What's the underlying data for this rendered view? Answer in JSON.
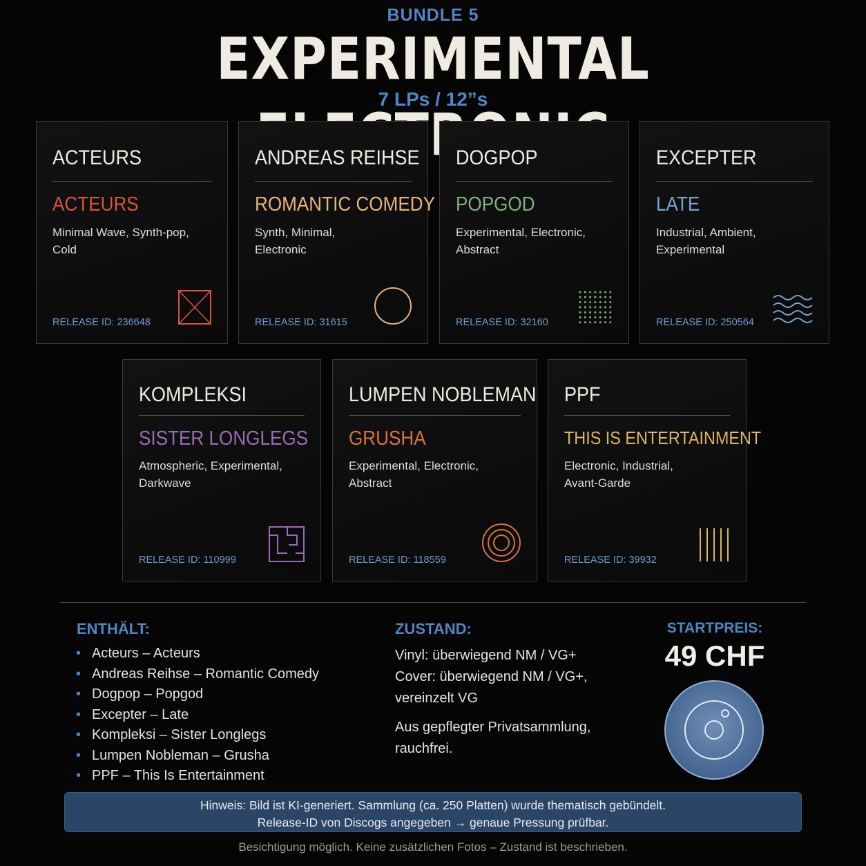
{
  "header": {
    "bundle": "BUNDLE 5",
    "title": "EXPERIMENTAL ELECTRONIC",
    "subtitle": "7 LPs / 12”s"
  },
  "release_id_label": "RELEASE ID:",
  "records": [
    {
      "artist": "ACTEURS",
      "album": "ACTEURS",
      "genres_line1": "Minimal Wave, Synth-pop,",
      "genres_line2": "Cold",
      "release_id": "236648",
      "color": "#d9533f",
      "icon": "crossed-square-icon"
    },
    {
      "artist": "ANDREAS REIHSE",
      "album": "ROMANTIC COMEDY",
      "genres_line1": "Synth, Minimal,",
      "genres_line2": "Electronic",
      "release_id": "31615",
      "color": "#e8b47c",
      "icon": "circle-icon"
    },
    {
      "artist": "DOGPOP",
      "album": "POPGOD",
      "genres_line1": "Experimental, Electronic,",
      "genres_line2": "Abstract",
      "release_id": "32160",
      "color": "#7fb37c",
      "icon": "dot-grid-icon"
    },
    {
      "artist": "EXCEPTER",
      "album": "LATE",
      "genres_line1": "Industrial, Ambient,",
      "genres_line2": "Experimental",
      "release_id": "250564",
      "color": "#78a4d6",
      "icon": "waves-icon"
    },
    {
      "artist": "KOMPLEKSI",
      "album": "SISTER LONGLEGS",
      "genres_line1": "Atmospheric, Experimental,",
      "genres_line2": "Darkwave",
      "release_id": "110999",
      "color": "#9b6bb8",
      "icon": "maze-square-icon"
    },
    {
      "artist": "LUMPEN NOBLEMAN",
      "album": "GRUSHA",
      "genres_line1": "Experimental, Electronic,",
      "genres_line2": "Abstract",
      "release_id": "118559",
      "color": "#d8733f",
      "icon": "concentric-circles-icon"
    },
    {
      "artist": "PPF",
      "album": "THIS IS ENTERTAINMENT",
      "genres_line1": "Electronic, Industrial,",
      "genres_line2": "Avant-Garde",
      "release_id": "39932",
      "color": "#dfb758",
      "icon": "vertical-lines-icon"
    }
  ],
  "contents": {
    "heading": "ENTHÄLT:",
    "items": [
      "Acteurs – Acteurs",
      "Andreas Reihse – Romantic Comedy",
      "Dogpop – Popgod",
      "Excepter – Late",
      "Kompleksi – Sister Longlegs",
      "Lumpen Nobleman – Grusha",
      "PPF – This Is Entertainment"
    ]
  },
  "condition": {
    "heading": "ZUSTAND:",
    "line1": "Vinyl: überwiegend NM / VG+",
    "line2": "Cover: überwiegend NM / VG+,",
    "line3": "vereinzelt VG",
    "line4": "Aus gepflegter Privatsammlung,",
    "line5": "rauchfrei."
  },
  "price": {
    "heading": "STARTPREIS:",
    "value": "49 CHF",
    "icon": "vinyl-record-icon"
  },
  "notice": {
    "line1": "Hinweis: Bild ist KI-generiert. Sammlung (ca. 250 Platten) wurde thematisch gebündelt.",
    "line2": "Release-ID von Discogs angegeben → genaue Pressung prüfbar."
  },
  "footer": "Besichtigung möglich. Keine zusätzlichen Fotos – Zustand ist beschrieben."
}
